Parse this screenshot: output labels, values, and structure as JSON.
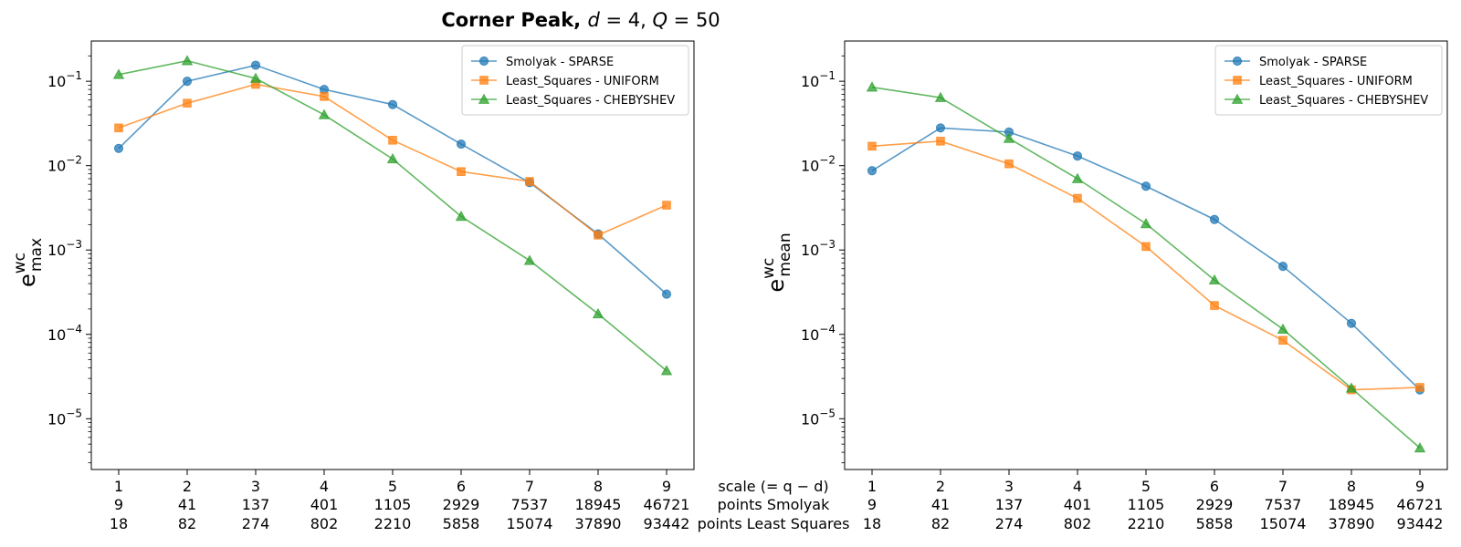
{
  "figure": {
    "title_main": "Corner Peak, ",
    "title_math": [
      "d",
      " = 4, ",
      "Q",
      " = 50"
    ]
  },
  "x_axis_rows": {
    "scale_label": "scale (= q − d)",
    "smolyak_label": "points Smolyak",
    "ls_label": "points Least Squares",
    "scale": [
      "1",
      "2",
      "3",
      "4",
      "5",
      "6",
      "7",
      "8",
      "9"
    ],
    "smolyak_points": [
      "9",
      "41",
      "137",
      "401",
      "1105",
      "2929",
      "7537",
      "18945",
      "46721"
    ],
    "ls_points": [
      "18",
      "82",
      "274",
      "802",
      "2210",
      "5858",
      "15074",
      "37890",
      "93442"
    ]
  },
  "colors": {
    "blue": "#1f77b4",
    "orange": "#ff7f0e",
    "green": "#2ca02c"
  },
  "chart_data": [
    {
      "type": "line",
      "yscale": "log",
      "ylim": [
        2.5e-06,
        0.3
      ],
      "ylabel": {
        "base": "e",
        "sup": "wc",
        "sub": "max"
      },
      "y_ticks": [
        {
          "value": 0.1,
          "base": "10",
          "exp": "−1"
        },
        {
          "value": 0.01,
          "base": "10",
          "exp": "−2"
        },
        {
          "value": 0.001,
          "base": "10",
          "exp": "−3"
        },
        {
          "value": 0.0001,
          "base": "10",
          "exp": "−4"
        },
        {
          "value": 1e-05,
          "base": "10",
          "exp": "−5"
        }
      ],
      "x": [
        1,
        2,
        3,
        4,
        5,
        6,
        7,
        8,
        9
      ],
      "legend": "top-right",
      "series": [
        {
          "name": "Smolyak - SPARSE",
          "marker": "circle",
          "color": "#1f77b4",
          "values": [
            0.016,
            0.1,
            0.155,
            0.08,
            0.053,
            0.018,
            0.0063,
            0.00155,
            0.0003
          ]
        },
        {
          "name": "Least_Squares - UNIFORM",
          "marker": "square",
          "color": "#ff7f0e",
          "values": [
            0.028,
            0.055,
            0.092,
            0.066,
            0.02,
            0.0085,
            0.0065,
            0.0015,
            0.0034
          ]
        },
        {
          "name": "Least_Squares - CHEBYSHEV",
          "marker": "triangle",
          "color": "#2ca02c",
          "values": [
            0.12,
            0.175,
            0.108,
            0.04,
            0.012,
            0.0025,
            0.00075,
            0.000175,
            3.7e-05
          ]
        }
      ]
    },
    {
      "type": "line",
      "yscale": "log",
      "ylim": [
        2.5e-06,
        0.3
      ],
      "ylabel": {
        "base": "e",
        "sup": "wc",
        "sub": "mean"
      },
      "y_ticks": [
        {
          "value": 0.1,
          "base": "10",
          "exp": "−1"
        },
        {
          "value": 0.01,
          "base": "10",
          "exp": "−2"
        },
        {
          "value": 0.001,
          "base": "10",
          "exp": "−3"
        },
        {
          "value": 0.0001,
          "base": "10",
          "exp": "−4"
        },
        {
          "value": 1e-05,
          "base": "10",
          "exp": "−5"
        }
      ],
      "x": [
        1,
        2,
        3,
        4,
        5,
        6,
        7,
        8,
        9
      ],
      "legend": "top-right",
      "series": [
        {
          "name": "Smolyak - SPARSE",
          "marker": "circle",
          "color": "#1f77b4",
          "values": [
            0.0087,
            0.028,
            0.025,
            0.013,
            0.0057,
            0.0023,
            0.00064,
            0.000135,
            2.2e-05
          ]
        },
        {
          "name": "Least_Squares - UNIFORM",
          "marker": "square",
          "color": "#ff7f0e",
          "values": [
            0.017,
            0.0195,
            0.0105,
            0.0041,
            0.0011,
            0.00022,
            8.5e-05,
            2.2e-05,
            2.35e-05
          ]
        },
        {
          "name": "Least_Squares - CHEBYSHEV",
          "marker": "triangle",
          "color": "#2ca02c",
          "values": [
            0.085,
            0.064,
            0.021,
            0.007,
            0.00205,
            0.00044,
            0.000115,
            2.3e-05,
            4.5e-06
          ]
        }
      ]
    }
  ]
}
